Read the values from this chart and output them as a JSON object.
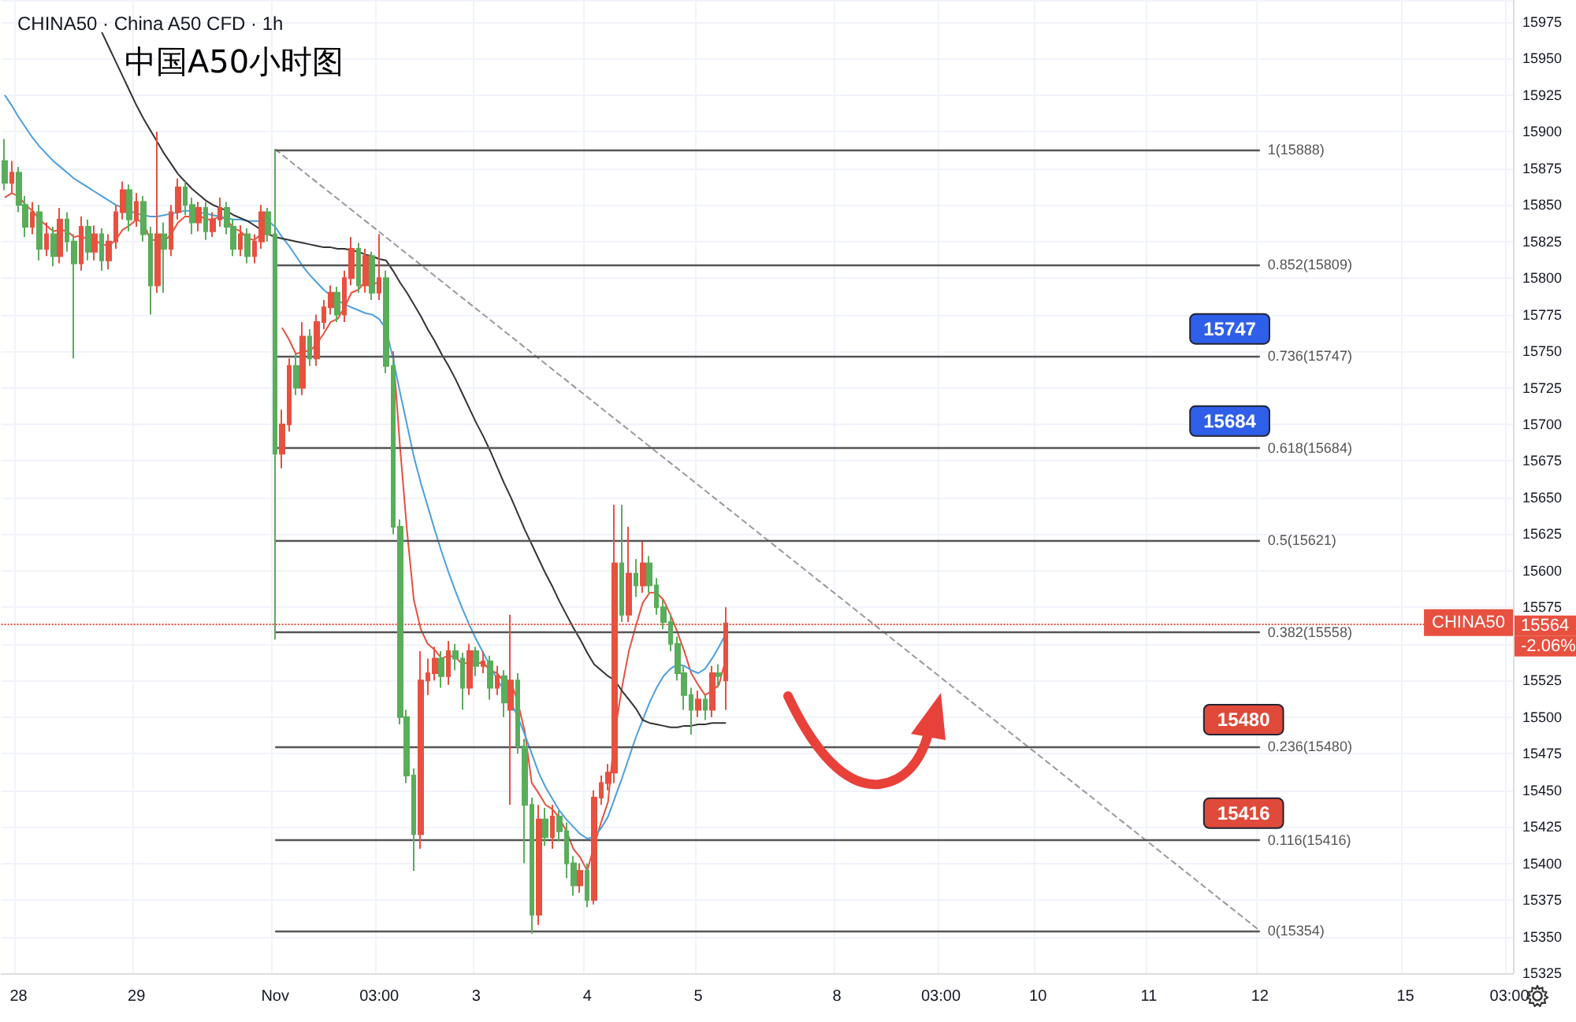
{
  "chart_data": {
    "type": "candlestick",
    "title": "CHINA50 · China A50 CFD · 1h",
    "subtitle": "中国A50小时图",
    "categories": [
      null,
      null,
      "28",
      null,
      null,
      null,
      null,
      null,
      null,
      null,
      null,
      null,
      null,
      null,
      null,
      null,
      null,
      null,
      null,
      "29",
      null,
      null,
      null,
      null,
      null,
      null,
      null,
      null,
      null,
      null,
      null,
      null,
      null,
      null,
      null,
      null,
      null,
      null,
      null,
      "Nov",
      null,
      null,
      null,
      null,
      null,
      null,
      null,
      null,
      null,
      null,
      null,
      null,
      null,
      null,
      "03:00",
      null,
      null,
      null,
      null,
      null,
      null,
      null,
      null,
      null,
      null,
      null,
      null,
      null,
      "3",
      null,
      null,
      null,
      null,
      null,
      null,
      null,
      null,
      null,
      null,
      null,
      null,
      null,
      null,
      null,
      "4",
      null,
      null,
      null,
      null,
      null,
      null,
      null,
      null,
      null,
      null,
      null,
      null,
      null,
      null,
      null,
      "5",
      null,
      null,
      null,
      null,
      null,
      null,
      null,
      null,
      null,
      null,
      null,
      null,
      null,
      null,
      null,
      null,
      null,
      null,
      null,
      "8",
      null,
      null,
      null,
      null,
      null,
      null,
      null,
      null,
      null,
      null,
      null,
      null,
      null,
      null,
      "03:00",
      null,
      null,
      null,
      null,
      null,
      null,
      null,
      null,
      null,
      null,
      null,
      null,
      null,
      "10",
      null,
      null,
      null,
      null,
      null,
      null,
      null,
      null,
      null,
      null,
      null,
      null,
      null,
      null,
      null,
      "11",
      null,
      null,
      null,
      null,
      null,
      null,
      null,
      null,
      null,
      null,
      null,
      null,
      null,
      null,
      null,
      "12",
      null,
      null,
      null,
      null,
      null,
      null,
      null,
      null,
      null,
      null,
      null,
      null,
      null,
      null,
      null,
      null,
      null,
      null,
      null,
      null,
      "15",
      null,
      null,
      null,
      null,
      null,
      null,
      null,
      null,
      null,
      null,
      null,
      null,
      null,
      null,
      "03:00"
    ],
    "ohlc": [
      [
        15880,
        15895,
        15860,
        15865
      ],
      [
        15865,
        15880,
        15858,
        15872
      ],
      [
        15872,
        15876,
        15845,
        15850
      ],
      [
        15850,
        15856,
        15828,
        15835
      ],
      [
        15835,
        15852,
        15830,
        15845
      ],
      [
        15845,
        15850,
        15812,
        15820
      ],
      [
        15820,
        15838,
        15815,
        15830
      ],
      [
        15830,
        15835,
        15808,
        15815
      ],
      [
        15815,
        15848,
        15810,
        15840
      ],
      [
        15840,
        15845,
        15818,
        15825
      ],
      [
        15825,
        15830,
        15745,
        15810
      ],
      [
        15810,
        15842,
        15805,
        15835
      ],
      [
        15835,
        15840,
        15812,
        15818
      ],
      [
        15818,
        15836,
        15812,
        15830
      ],
      [
        15830,
        15834,
        15805,
        15812
      ],
      [
        15812,
        15830,
        15806,
        15825
      ],
      [
        15825,
        15850,
        15820,
        15845
      ],
      [
        15845,
        15866,
        15840,
        15860
      ],
      [
        15860,
        15864,
        15832,
        15840
      ],
      [
        15840,
        15858,
        15835,
        15852
      ],
      [
        15852,
        15856,
        15825,
        15830
      ],
      [
        15830,
        15835,
        15775,
        15795
      ],
      [
        15795,
        15900,
        15790,
        15830
      ],
      [
        15830,
        15838,
        15790,
        15820
      ],
      [
        15820,
        15850,
        15815,
        15845
      ],
      [
        15845,
        15868,
        15840,
        15862
      ],
      [
        15862,
        15866,
        15843,
        15850
      ],
      [
        15850,
        15855,
        15830,
        15838
      ],
      [
        15838,
        15852,
        15832,
        15848
      ],
      [
        15848,
        15852,
        15826,
        15832
      ],
      [
        15832,
        15845,
        15828,
        15840
      ],
      [
        15840,
        15855,
        15835,
        15848
      ],
      [
        15848,
        15852,
        15830,
        15835
      ],
      [
        15835,
        15840,
        15815,
        15820
      ],
      [
        15820,
        15836,
        15815,
        15830
      ],
      [
        15830,
        15834,
        15810,
        15815
      ],
      [
        15815,
        15830,
        15810,
        15825
      ],
      [
        15825,
        15850,
        15820,
        15845
      ],
      [
        15845,
        15848,
        15825,
        15830
      ],
      [
        15830,
        15888,
        15553,
        15680
      ],
      [
        15680,
        15710,
        15670,
        15700
      ],
      [
        15700,
        15745,
        15695,
        15740
      ],
      [
        15740,
        15748,
        15720,
        15725
      ],
      [
        15725,
        15770,
        15720,
        15760
      ],
      [
        15760,
        15765,
        15740,
        15745
      ],
      [
        15745,
        15775,
        15740,
        15770
      ],
      [
        15770,
        15785,
        15765,
        15780
      ],
      [
        15780,
        15795,
        15775,
        15790
      ],
      [
        15790,
        15794,
        15770,
        15775
      ],
      [
        15775,
        15805,
        15770,
        15800
      ],
      [
        15800,
        15828,
        15795,
        15820
      ],
      [
        15820,
        15824,
        15790,
        15795
      ],
      [
        15795,
        15820,
        15790,
        15815
      ],
      [
        15815,
        15818,
        15785,
        15790
      ],
      [
        15790,
        15830,
        15785,
        15800
      ],
      [
        15800,
        15805,
        15735,
        15740
      ],
      [
        15740,
        15745,
        15625,
        15630
      ],
      [
        15630,
        15635,
        15495,
        15500
      ],
      [
        15500,
        15505,
        15455,
        15460
      ],
      [
        15460,
        15465,
        15395,
        15420
      ],
      [
        15420,
        15545,
        15410,
        15525
      ],
      [
        15525,
        15540,
        15515,
        15530
      ],
      [
        15530,
        15548,
        15525,
        15540
      ],
      [
        15540,
        15545,
        15520,
        15528
      ],
      [
        15528,
        15552,
        15522,
        15545
      ],
      [
        15545,
        15550,
        15532,
        15540
      ],
      [
        15540,
        15544,
        15505,
        15520
      ],
      [
        15520,
        15550,
        15515,
        15545
      ],
      [
        15545,
        15548,
        15528,
        15535
      ],
      [
        15535,
        15545,
        15530,
        15538
      ],
      [
        15538,
        15542,
        15512,
        15520
      ],
      [
        15520,
        15535,
        15515,
        15528
      ],
      [
        15528,
        15532,
        15500,
        15510
      ],
      [
        15505,
        15570,
        15440,
        15525
      ],
      [
        15525,
        15530,
        15475,
        15480
      ],
      [
        15480,
        15485,
        15400,
        15440
      ],
      [
        15440,
        15445,
        15352,
        15365
      ],
      [
        15365,
        15440,
        15358,
        15430
      ],
      [
        15430,
        15438,
        15412,
        15418
      ],
      [
        15418,
        15440,
        15410,
        15432
      ],
      [
        15432,
        15436,
        15415,
        15422
      ],
      [
        15422,
        15428,
        15390,
        15400
      ],
      [
        15400,
        15405,
        15378,
        15385
      ],
      [
        15385,
        15400,
        15380,
        15395
      ],
      [
        15395,
        15400,
        15370,
        15375
      ],
      [
        15375,
        15450,
        15372,
        15445
      ],
      [
        15445,
        15460,
        15440,
        15455
      ],
      [
        15455,
        15468,
        15450,
        15462
      ],
      [
        15462,
        15645,
        15455,
        15605
      ],
      [
        15605,
        15645,
        15565,
        15570
      ],
      [
        15570,
        15630,
        15565,
        15598
      ],
      [
        15598,
        15608,
        15582,
        15590
      ],
      [
        15590,
        15620,
        15585,
        15605
      ],
      [
        15605,
        15610,
        15585,
        15590
      ],
      [
        15590,
        15595,
        15570,
        15575
      ],
      [
        15575,
        15580,
        15560,
        15565
      ],
      [
        15565,
        15570,
        15545,
        15550
      ],
      [
        15550,
        15555,
        15525,
        15530
      ],
      [
        15530,
        15535,
        15505,
        15515
      ],
      [
        15515,
        15520,
        15488,
        15505
      ],
      [
        15505,
        15518,
        15500,
        15512
      ],
      [
        15512,
        15515,
        15498,
        15505
      ],
      [
        15505,
        15535,
        15500,
        15530
      ],
      [
        15530,
        15536,
        15520,
        15528
      ],
      [
        15525,
        15575,
        15505,
        15564
      ],
      null,
      null,
      null,
      null,
      null,
      null,
      null,
      null,
      null,
      null,
      null,
      null,
      null,
      null,
      null,
      null,
      null,
      null,
      null,
      null,
      null,
      null,
      null,
      null,
      null,
      null,
      null,
      null,
      null,
      null,
      null,
      null,
      null,
      null,
      null,
      null,
      null,
      null,
      null,
      null,
      null,
      null,
      null,
      null,
      null,
      null,
      null,
      null,
      null,
      null,
      null,
      null,
      null,
      null,
      null,
      null,
      null,
      null,
      null,
      null,
      null,
      null,
      null,
      null,
      null,
      null,
      null,
      null,
      null,
      null,
      null,
      null,
      null,
      null,
      null,
      null,
      null,
      null,
      null,
      null,
      null,
      null,
      null,
      null,
      null,
      null,
      null,
      null,
      null,
      null,
      null,
      null,
      null,
      null,
      null,
      null,
      null,
      null,
      null,
      null,
      null,
      null,
      null,
      null,
      null,
      null,
      null,
      null,
      null,
      null,
      null,
      null,
      null
    ],
    "series": [
      {
        "type": "line",
        "color": "#e8503f",
        "values": [
          15855,
          15858,
          15856,
          15850,
          15846,
          15840,
          15836,
          15832,
          15833,
          15832,
          15828,
          15829,
          15826,
          15826,
          15823,
          15822,
          15826,
          15833,
          15836,
          15840,
          15838,
          15826,
          15826,
          15825,
          15830,
          15838,
          15842,
          15842,
          15843,
          15840,
          15840,
          15842,
          15840,
          15834,
          15832,
          15827,
          15826,
          15830,
          15830,
          null,
          15766,
          15758,
          15748,
          15750,
          15750,
          15755,
          15762,
          15770,
          15772,
          15780,
          15790,
          15792,
          15798,
          15796,
          15797,
          null,
          15750,
          15685,
          15628,
          15580,
          15560,
          15550,
          15546,
          15540,
          15542,
          15541,
          15536,
          15538,
          15537,
          15537,
          15532,
          15530,
          15524,
          15524,
          15510,
          15490,
          15455,
          15448,
          15440,
          15437,
          15431,
          15422,
          15410,
          15404,
          15395,
          15412,
          15428,
          15442,
          15490,
          15520,
          15545,
          15562,
          15578,
          15585,
          15585,
          15580,
          15570,
          15558,
          15545,
          15530,
          15522,
          15515,
          15518,
          15522,
          15540,
          null,
          null,
          null,
          null,
          null,
          null,
          null,
          null,
          null,
          null,
          null,
          null,
          null,
          null,
          null,
          null,
          null,
          null,
          null,
          null,
          null,
          null,
          null,
          null,
          null,
          null,
          null,
          null,
          null,
          null,
          null,
          null,
          null,
          null,
          null,
          null,
          null,
          null,
          null,
          null,
          null,
          null,
          null,
          null,
          null,
          null,
          null,
          null,
          null,
          null,
          null,
          null,
          null,
          null,
          null,
          null,
          null,
          null,
          null,
          null,
          null,
          null,
          null,
          null,
          null,
          null,
          null,
          null,
          null,
          null,
          null,
          null,
          null,
          null,
          null,
          null,
          null,
          null,
          null,
          null,
          null,
          null,
          null,
          null,
          null,
          null,
          null,
          null,
          null,
          null,
          null,
          null,
          null,
          null,
          null,
          null,
          null,
          null,
          null,
          null,
          null,
          null,
          null,
          null,
          null,
          null,
          null,
          null,
          null,
          null,
          null,
          null,
          null
        ]
      },
      {
        "type": "line",
        "color": "#4a9fe0",
        "values": [
          15925,
          15918,
          15910,
          15903,
          15896,
          15890,
          15885,
          15880,
          15876,
          15872,
          15868,
          15865,
          15862,
          15859,
          15856,
          15853,
          15850,
          15848,
          15846,
          15844,
          15843,
          15842,
          15842,
          15843,
          15844,
          15845,
          15846,
          15846,
          15845,
          15844,
          15843,
          15842,
          15841,
          15840,
          15840,
          15839,
          15839,
          15839,
          15839,
          15835,
          15828,
          15822,
          15815,
          15808,
          15802,
          15797,
          15792,
          15788,
          15785,
          15782,
          15780,
          15778,
          15776,
          15775,
          15772,
          15765,
          15745,
          15722,
          15700,
          15678,
          15660,
          15644,
          15628,
          15613,
          15599,
          15586,
          15574,
          15563,
          15553,
          15544,
          15535,
          15526,
          15518,
          15510,
          15500,
          15488,
          15475,
          15462,
          15452,
          15444,
          15436,
          15430,
          15425,
          15420,
          15417,
          15418,
          15424,
          15432,
          15445,
          15458,
          15472,
          15486,
          15498,
          15510,
          15520,
          15528,
          15533,
          15536,
          15535,
          15532,
          15530,
          15533,
          15540,
          15548,
          15557,
          null,
          null,
          null,
          null,
          null,
          null,
          null,
          null,
          null,
          null,
          null,
          null,
          null,
          null,
          null,
          null,
          null,
          null,
          null,
          null,
          null,
          null,
          null,
          null,
          null,
          null,
          null,
          null,
          null,
          null,
          null,
          null,
          null,
          null,
          null,
          null,
          null,
          null,
          null,
          null,
          null,
          null,
          null,
          null,
          null,
          null,
          null,
          null,
          null,
          null,
          null,
          null,
          null,
          null,
          null,
          null,
          null,
          null,
          null,
          null,
          null,
          null,
          null,
          null,
          null,
          null,
          null,
          null,
          null,
          null,
          null,
          null,
          null,
          null,
          null,
          null,
          null,
          null,
          null,
          null,
          null,
          null,
          null,
          null,
          null,
          null,
          null,
          null,
          null,
          null,
          null,
          null,
          null,
          null,
          null,
          null,
          null,
          null,
          null,
          null,
          null,
          null,
          null,
          null,
          null,
          null,
          null,
          null,
          null,
          null,
          null,
          null,
          null
        ]
      },
      {
        "type": "line",
        "color": "#333333",
        "values": [
          null,
          null,
          null,
          null,
          null,
          null,
          null,
          null,
          null,
          null,
          null,
          null,
          null,
          null,
          15968,
          15958,
          15948,
          15938,
          15928,
          15918,
          15909,
          15901,
          15893,
          15885,
          15878,
          15871,
          15866,
          15861,
          15857,
          15853,
          15850,
          15848,
          15846,
          15843,
          15841,
          15839,
          15836,
          15833,
          15830,
          15828,
          15827,
          15826,
          15825,
          15824,
          15823,
          15822,
          15821,
          15821,
          15820,
          15820,
          15819,
          15818,
          15816,
          15815,
          15813,
          15812,
          15805,
          15797,
          15790,
          15782,
          15774,
          15765,
          15757,
          15748,
          15740,
          15731,
          15721,
          15711,
          15701,
          15692,
          15682,
          15671,
          15660,
          15650,
          15639,
          15628,
          15618,
          15608,
          15598,
          15589,
          15579,
          15570,
          15561,
          15553,
          15544,
          15536,
          15532,
          15528,
          15525,
          15518,
          15512,
          15506,
          15498,
          15496,
          15495,
          15494,
          15493,
          15493,
          15494,
          15494,
          15495,
          15495,
          15496,
          15496,
          15496,
          null,
          null,
          null,
          null,
          null,
          null,
          null,
          null,
          null,
          null,
          null,
          null,
          null,
          null,
          null,
          null,
          null,
          null,
          null,
          null,
          null,
          null,
          null,
          null,
          null,
          null,
          null,
          null,
          null,
          null,
          null,
          null,
          null,
          null,
          null,
          null,
          null,
          null,
          null,
          null,
          null,
          null,
          null,
          null,
          null,
          null,
          null,
          null,
          null,
          null,
          null,
          null,
          null,
          null,
          null,
          null,
          null,
          null,
          null,
          null,
          null,
          null,
          null,
          null,
          null,
          null,
          null,
          null,
          null,
          null,
          null,
          null,
          null,
          null,
          null,
          null,
          null,
          null,
          null,
          null,
          null,
          null,
          null,
          null,
          null,
          null,
          null,
          null,
          null,
          null,
          null,
          null,
          null,
          null,
          null,
          null,
          null,
          null,
          null,
          null,
          null,
          null,
          null,
          null,
          null,
          null,
          null,
          null,
          null,
          null,
          null,
          null,
          null
        ]
      },
      {
        "type": "line",
        "color": "#999999",
        "line_style": "dashed",
        "x": [
          "Nov",
          "12"
        ],
        "values": [
          15888,
          15354
        ]
      }
    ],
    "marker": "none",
    "ylim": [
      15325,
      15990
    ],
    "yticks": [
      15325,
      15350,
      15375,
      15400,
      15425,
      15450,
      15475,
      15500,
      15525,
      15575,
      15600,
      15625,
      15650,
      15675,
      15700,
      15725,
      15750,
      15775,
      15800,
      15825,
      15850,
      15875,
      15900,
      15925,
      15950,
      15975
    ],
    "grid": true,
    "ref_lines": [
      {
        "axis": "y",
        "value": 15888,
        "label": "1(15888)",
        "color": "#555555"
      },
      {
        "axis": "y",
        "value": 15809,
        "label": "0.852(15809)",
        "color": "#555555"
      },
      {
        "axis": "y",
        "value": 15747,
        "label": "0.736(15747)",
        "color": "#555555"
      },
      {
        "axis": "y",
        "value": 15684,
        "label": "0.618(15684)",
        "color": "#555555"
      },
      {
        "axis": "y",
        "value": 15621,
        "label": "0.5(15621)",
        "color": "#555555"
      },
      {
        "axis": "y",
        "value": 15558,
        "label": "0.382(15558)",
        "color": "#555555"
      },
      {
        "axis": "y",
        "value": 15480,
        "label": "0.236(15480)",
        "color": "#555555"
      },
      {
        "axis": "y",
        "value": 15416,
        "label": "0.116(15416)",
        "color": "#555555"
      },
      {
        "axis": "y",
        "value": 15354,
        "label": "0(15354)",
        "color": "#555555"
      },
      {
        "axis": "y",
        "value": 15564,
        "label": "CHINA50",
        "color": "#e8503f",
        "line_style": "dotted"
      }
    ],
    "annotations": [
      {
        "text": "15747",
        "y": 15747
      },
      {
        "text": "15684",
        "y": 15684
      },
      {
        "text": "15480",
        "y": 15480
      },
      {
        "text": "15416",
        "y": 15416
      },
      "15564",
      "-2.06%"
    ]
  }
}
